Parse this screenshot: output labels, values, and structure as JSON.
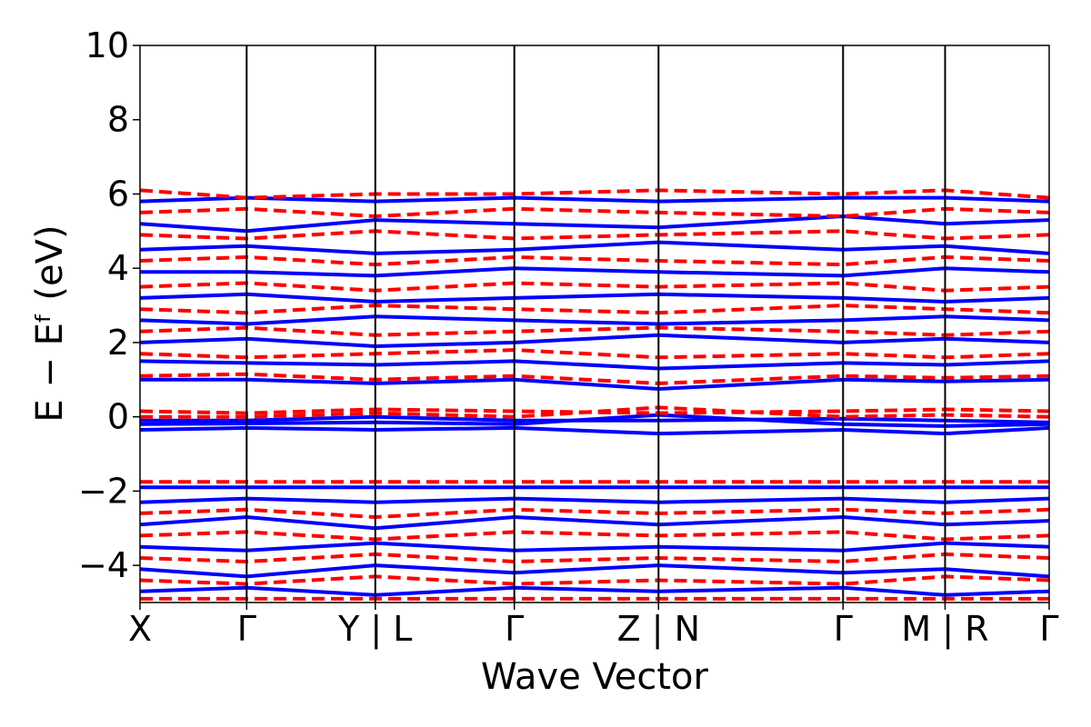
{
  "chart_data": {
    "type": "line",
    "title": "",
    "xlabel": "Wave Vector",
    "ylabel": "E − Eᶠ (eV)",
    "ylim": [
      -5,
      10
    ],
    "yticks": [
      -4,
      -2,
      0,
      2,
      4,
      6,
      8,
      10
    ],
    "ytick_labels": [
      "−4",
      "−2",
      "0",
      "2",
      "4",
      "6",
      "8",
      "10"
    ],
    "kpath_positions": [
      0,
      0.1173,
      0.2588,
      0.4117,
      0.5703,
      0.7733,
      0.8855,
      1.0
    ],
    "kpath_labels": [
      "X",
      "Γ",
      "Y | L",
      "Γ",
      "Z | N",
      "Γ",
      "M | R",
      "Γ"
    ],
    "vertical_lines": [
      0.1173,
      0.2588,
      0.4117,
      0.5703,
      0.7733,
      0.8855
    ],
    "grid": false,
    "legend": "none",
    "colors": {
      "series_a": "#0000ff",
      "series_b": "#ff0000",
      "axes": "#000000"
    },
    "series": [
      {
        "style": "solid",
        "color": "#0000ff",
        "bands": [
          {
            "x": [
              0,
              0.1173,
              0.2588,
              0.4117,
              0.5703,
              0.7733,
              0.8855,
              1.0
            ],
            "y": [
              -0.35,
              -0.3,
              -0.35,
              -0.3,
              -0.45,
              -0.35,
              -0.45,
              -0.3
            ]
          },
          {
            "x": [
              0,
              0.1173,
              0.2588,
              0.4117,
              0.5703,
              0.7733,
              0.8855,
              1.0
            ],
            "y": [
              -0.2,
              -0.18,
              -0.15,
              -0.2,
              0.05,
              -0.2,
              -0.25,
              -0.2
            ]
          },
          {
            "x": [
              0,
              0.1173,
              0.2588,
              0.4117,
              0.5703,
              0.7733,
              0.8855,
              1.0
            ],
            "y": [
              -0.1,
              -0.1,
              0.0,
              -0.1,
              -0.1,
              -0.05,
              -0.1,
              -0.15
            ]
          },
          {
            "x": [
              0,
              0.1173,
              0.2588,
              0.4117,
              0.5703,
              0.7733,
              0.8855,
              1.0
            ],
            "y": [
              1.0,
              1.0,
              0.9,
              1.0,
              0.75,
              1.0,
              0.95,
              1.0
            ]
          },
          {
            "x": [
              0,
              0.1173,
              0.2588,
              0.4117,
              0.5703,
              0.7733,
              0.8855,
              1.0
            ],
            "y": [
              1.5,
              1.45,
              1.4,
              1.5,
              1.3,
              1.45,
              1.4,
              1.5
            ]
          },
          {
            "x": [
              0,
              0.1173,
              0.2588,
              0.4117,
              0.5703,
              0.7733,
              0.8855,
              1.0
            ],
            "y": [
              2.0,
              2.1,
              1.9,
              2.0,
              2.2,
              2.0,
              2.1,
              2.0
            ]
          },
          {
            "x": [
              0,
              0.1173,
              0.2588,
              0.4117,
              0.5703,
              0.7733,
              0.8855,
              1.0
            ],
            "y": [
              2.6,
              2.5,
              2.7,
              2.6,
              2.5,
              2.6,
              2.7,
              2.6
            ]
          },
          {
            "x": [
              0,
              0.1173,
              0.2588,
              0.4117,
              0.5703,
              0.7733,
              0.8855,
              1.0
            ],
            "y": [
              3.2,
              3.3,
              3.1,
              3.2,
              3.3,
              3.2,
              3.1,
              3.2
            ]
          },
          {
            "x": [
              0,
              0.1173,
              0.2588,
              0.4117,
              0.5703,
              0.7733,
              0.8855,
              1.0
            ],
            "y": [
              3.9,
              3.9,
              3.8,
              4.0,
              3.9,
              3.8,
              4.0,
              3.9
            ]
          },
          {
            "x": [
              0,
              0.1173,
              0.2588,
              0.4117,
              0.5703,
              0.7733,
              0.8855,
              1.0
            ],
            "y": [
              4.5,
              4.6,
              4.4,
              4.5,
              4.7,
              4.5,
              4.6,
              4.4
            ]
          },
          {
            "x": [
              0,
              0.1173,
              0.2588,
              0.4117,
              0.5703,
              0.7733,
              0.8855,
              1.0
            ],
            "y": [
              5.2,
              5.0,
              5.3,
              5.2,
              5.1,
              5.4,
              5.2,
              5.3
            ]
          },
          {
            "x": [
              0,
              0.1173,
              0.2588,
              0.4117,
              0.5703,
              0.7733,
              0.8855,
              1.0
            ],
            "y": [
              5.8,
              5.9,
              5.8,
              5.9,
              5.8,
              5.9,
              5.9,
              5.8
            ]
          },
          {
            "x": [
              0,
              0.1173,
              0.2588,
              0.4117,
              0.5703,
              0.7733,
              0.8855,
              1.0
            ],
            "y": [
              -1.9,
              -1.9,
              -1.9,
              -1.9,
              -1.9,
              -1.9,
              -1.9,
              -1.9
            ]
          },
          {
            "x": [
              0,
              0.1173,
              0.2588,
              0.4117,
              0.5703,
              0.7733,
              0.8855,
              1.0
            ],
            "y": [
              -2.3,
              -2.2,
              -2.3,
              -2.2,
              -2.3,
              -2.2,
              -2.3,
              -2.2
            ]
          },
          {
            "x": [
              0,
              0.1173,
              0.2588,
              0.4117,
              0.5703,
              0.7733,
              0.8855,
              1.0
            ],
            "y": [
              -2.9,
              -2.7,
              -3.0,
              -2.7,
              -2.9,
              -2.7,
              -2.9,
              -2.8
            ]
          },
          {
            "x": [
              0,
              0.1173,
              0.2588,
              0.4117,
              0.5703,
              0.7733,
              0.8855,
              1.0
            ],
            "y": [
              -3.5,
              -3.6,
              -3.4,
              -3.6,
              -3.5,
              -3.6,
              -3.4,
              -3.5
            ]
          },
          {
            "x": [
              0,
              0.1173,
              0.2588,
              0.4117,
              0.5703,
              0.7733,
              0.8855,
              1.0
            ],
            "y": [
              -4.1,
              -4.3,
              -4.0,
              -4.2,
              -4.0,
              -4.2,
              -4.1,
              -4.3
            ]
          },
          {
            "x": [
              0,
              0.1173,
              0.2588,
              0.4117,
              0.5703,
              0.7733,
              0.8855,
              1.0
            ],
            "y": [
              -4.7,
              -4.6,
              -4.8,
              -4.6,
              -4.7,
              -4.6,
              -4.8,
              -4.7
            ]
          }
        ]
      },
      {
        "style": "dashed",
        "color": "#ff0000",
        "bands": [
          {
            "x": [
              0,
              0.1173,
              0.2588,
              0.4117,
              0.5703,
              0.7733,
              0.8855,
              1.0
            ],
            "y": [
              0.15,
              0.1,
              0.2,
              0.15,
              0.1,
              0.15,
              0.2,
              0.15
            ]
          },
          {
            "x": [
              0,
              0.1173,
              0.2588,
              0.4117,
              0.5703,
              0.7733,
              0.8855,
              1.0
            ],
            "y": [
              0.0,
              0.0,
              0.1,
              0.0,
              0.25,
              0.0,
              0.05,
              0.0
            ]
          },
          {
            "x": [
              0,
              0.1173,
              0.2588,
              0.4117,
              0.5703,
              0.7733,
              0.8855,
              1.0
            ],
            "y": [
              1.1,
              1.15,
              1.0,
              1.1,
              0.9,
              1.1,
              1.05,
              1.1
            ]
          },
          {
            "x": [
              0,
              0.1173,
              0.2588,
              0.4117,
              0.5703,
              0.7733,
              0.8855,
              1.0
            ],
            "y": [
              1.7,
              1.6,
              1.7,
              1.8,
              1.6,
              1.7,
              1.6,
              1.7
            ]
          },
          {
            "x": [
              0,
              0.1173,
              0.2588,
              0.4117,
              0.5703,
              0.7733,
              0.8855,
              1.0
            ],
            "y": [
              2.3,
              2.4,
              2.2,
              2.3,
              2.4,
              2.3,
              2.2,
              2.3
            ]
          },
          {
            "x": [
              0,
              0.1173,
              0.2588,
              0.4117,
              0.5703,
              0.7733,
              0.8855,
              1.0
            ],
            "y": [
              2.9,
              2.8,
              3.0,
              2.9,
              2.8,
              3.0,
              2.9,
              2.8
            ]
          },
          {
            "x": [
              0,
              0.1173,
              0.2588,
              0.4117,
              0.5703,
              0.7733,
              0.8855,
              1.0
            ],
            "y": [
              3.5,
              3.6,
              3.4,
              3.6,
              3.5,
              3.6,
              3.4,
              3.5
            ]
          },
          {
            "x": [
              0,
              0.1173,
              0.2588,
              0.4117,
              0.5703,
              0.7733,
              0.8855,
              1.0
            ],
            "y": [
              4.2,
              4.3,
              4.1,
              4.3,
              4.2,
              4.1,
              4.3,
              4.2
            ]
          },
          {
            "x": [
              0,
              0.1173,
              0.2588,
              0.4117,
              0.5703,
              0.7733,
              0.8855,
              1.0
            ],
            "y": [
              4.9,
              4.8,
              5.0,
              4.8,
              4.9,
              5.0,
              4.8,
              4.9
            ]
          },
          {
            "x": [
              0,
              0.1173,
              0.2588,
              0.4117,
              0.5703,
              0.7733,
              0.8855,
              1.0
            ],
            "y": [
              5.5,
              5.6,
              5.4,
              5.6,
              5.5,
              5.4,
              5.6,
              5.5
            ]
          },
          {
            "x": [
              0,
              0.1173,
              0.2588,
              0.4117,
              0.5703,
              0.7733,
              0.8855,
              1.0
            ],
            "y": [
              6.1,
              5.9,
              6.0,
              6.0,
              6.1,
              6.0,
              6.1,
              5.9
            ]
          },
          {
            "x": [
              0,
              0.1173,
              0.2588,
              0.4117,
              0.5703,
              0.7733,
              0.8855,
              1.0
            ],
            "y": [
              -1.75,
              -1.75,
              -1.75,
              -1.75,
              -1.75,
              -1.75,
              -1.75,
              -1.75
            ]
          },
          {
            "x": [
              0,
              0.1173,
              0.2588,
              0.4117,
              0.5703,
              0.7733,
              0.8855,
              1.0
            ],
            "y": [
              -2.6,
              -2.5,
              -2.7,
              -2.5,
              -2.6,
              -2.5,
              -2.6,
              -2.5
            ]
          },
          {
            "x": [
              0,
              0.1173,
              0.2588,
              0.4117,
              0.5703,
              0.7733,
              0.8855,
              1.0
            ],
            "y": [
              -3.2,
              -3.1,
              -3.3,
              -3.1,
              -3.2,
              -3.1,
              -3.3,
              -3.2
            ]
          },
          {
            "x": [
              0,
              0.1173,
              0.2588,
              0.4117,
              0.5703,
              0.7733,
              0.8855,
              1.0
            ],
            "y": [
              -3.8,
              -3.9,
              -3.7,
              -3.9,
              -3.8,
              -3.9,
              -3.7,
              -3.8
            ]
          },
          {
            "x": [
              0,
              0.1173,
              0.2588,
              0.4117,
              0.5703,
              0.7733,
              0.8855,
              1.0
            ],
            "y": [
              -4.4,
              -4.5,
              -4.3,
              -4.5,
              -4.4,
              -4.5,
              -4.3,
              -4.4
            ]
          },
          {
            "x": [
              0,
              0.1173,
              0.2588,
              0.4117,
              0.5703,
              0.7733,
              0.8855,
              1.0
            ],
            "y": [
              -4.9,
              -4.9,
              -4.9,
              -4.9,
              -4.9,
              -4.9,
              -4.9,
              -4.9
            ]
          }
        ]
      }
    ]
  }
}
